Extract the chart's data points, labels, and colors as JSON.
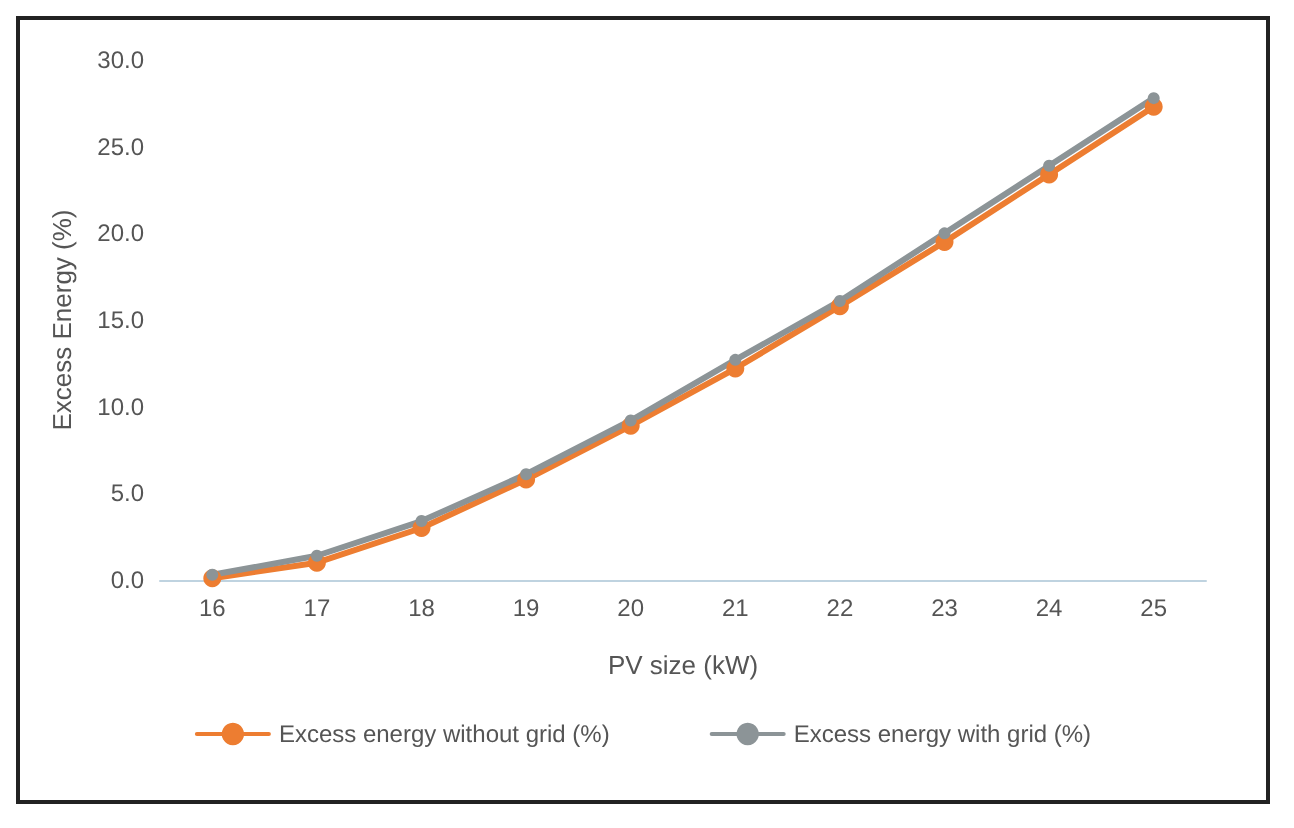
{
  "chart_data": {
    "type": "line",
    "xlabel": "PV size (kW)",
    "ylabel": "Excess Energy (%)",
    "categories": [
      "16",
      "17",
      "18",
      "19",
      "20",
      "21",
      "22",
      "23",
      "24",
      "25"
    ],
    "series": [
      {
        "name": "Excess energy without grid (%)",
        "color": "#ed7d31",
        "values": [
          0.1,
          1.0,
          3.0,
          5.8,
          8.9,
          12.2,
          15.8,
          19.5,
          23.4,
          27.3
        ]
      },
      {
        "name": "Excess energy with grid (%)",
        "color": "#8c9497",
        "values": [
          0.3,
          1.4,
          3.4,
          6.1,
          9.2,
          12.7,
          16.1,
          20.0,
          23.9,
          27.8
        ]
      }
    ],
    "ylim": [
      0,
      30
    ],
    "yticks": [
      {
        "value": 0,
        "label": "0.0"
      },
      {
        "value": 5,
        "label": "5.0"
      },
      {
        "value": 10,
        "label": "10.0"
      },
      {
        "value": 15,
        "label": "15.0"
      },
      {
        "value": 20,
        "label": "20.0"
      },
      {
        "value": 25,
        "label": "25.0"
      },
      {
        "value": 30,
        "label": "30.0"
      }
    ],
    "grid": false,
    "legend": "bottom",
    "marker": "circle",
    "line_style": "solid"
  }
}
